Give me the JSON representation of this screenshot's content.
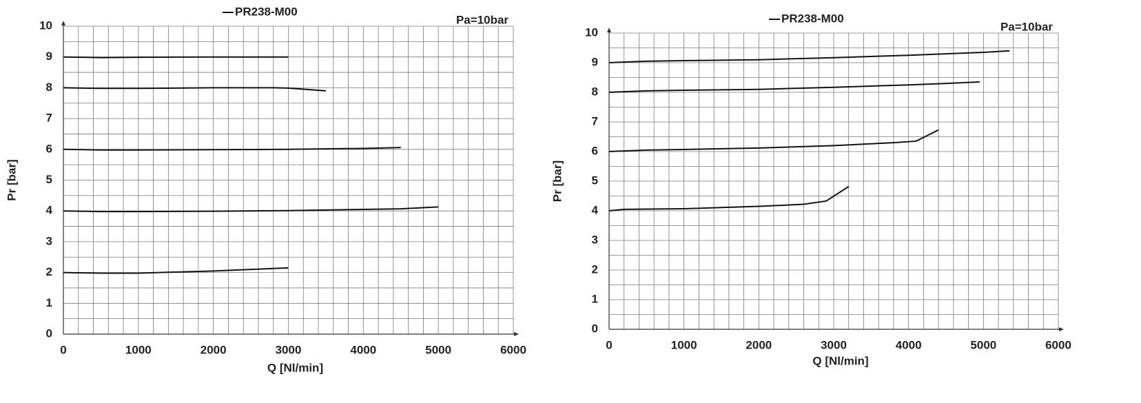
{
  "chart_data": [
    {
      "type": "line",
      "title": "PR238-M00",
      "annotation": "Pa=10bar",
      "x_label": "Q [Nl/min]",
      "y_label": "Pr [bar]",
      "xlim": [
        0,
        6000
      ],
      "xticks": [
        0,
        1000,
        2000,
        3000,
        4000,
        5000,
        6000
      ],
      "ylim": [
        0,
        10
      ],
      "yticks": [
        0,
        1,
        2,
        3,
        4,
        5,
        6,
        7,
        8,
        9,
        10
      ],
      "grid": true,
      "color": "#111111",
      "series": [
        {
          "x": [
            0,
            500,
            1000,
            2000,
            3000
          ],
          "values": [
            9,
            8.98,
            8.99,
            9,
            9
          ]
        },
        {
          "x": [
            0,
            500,
            1000,
            2000,
            2800,
            3000,
            3500
          ],
          "values": [
            8,
            7.98,
            7.98,
            8,
            8,
            7.99,
            7.9
          ]
        },
        {
          "x": [
            0,
            500,
            1000,
            2000,
            3000,
            4000,
            4500
          ],
          "values": [
            6,
            5.98,
            5.98,
            5.99,
            6,
            6.03,
            6.06
          ]
        },
        {
          "x": [
            0,
            500,
            1000,
            2000,
            3000,
            4000,
            4500,
            5000
          ],
          "values": [
            4,
            3.98,
            3.98,
            3.99,
            4.01,
            4.05,
            4.07,
            4.13
          ]
        },
        {
          "x": [
            0,
            500,
            1000,
            2000,
            3000
          ],
          "values": [
            2,
            1.98,
            1.98,
            2.05,
            2.15
          ]
        }
      ]
    },
    {
      "type": "line",
      "title": "PR238-M00",
      "annotation": "Pa=10bar",
      "x_label": "Q [Nl/min]",
      "y_label": "Pr [bar]",
      "xlim": [
        0,
        6000
      ],
      "xticks": [
        0,
        1000,
        2000,
        3000,
        4000,
        5000,
        6000
      ],
      "ylim": [
        0,
        10
      ],
      "yticks": [
        0,
        1,
        2,
        3,
        4,
        5,
        6,
        7,
        8,
        9,
        10
      ],
      "grid": true,
      "color": "#111111",
      "series": [
        {
          "x": [
            0,
            500,
            1000,
            2000,
            3000,
            4000,
            5000,
            5350
          ],
          "values": [
            9,
            9.05,
            9.07,
            9.1,
            9.17,
            9.25,
            9.35,
            9.4
          ]
        },
        {
          "x": [
            0,
            500,
            1000,
            2000,
            3000,
            4000,
            4500,
            4950
          ],
          "values": [
            8,
            8.05,
            8.07,
            8.1,
            8.17,
            8.25,
            8.3,
            8.35
          ]
        },
        {
          "x": [
            0,
            500,
            1000,
            2000,
            3000,
            3800,
            4100,
            4400
          ],
          "values": [
            6,
            6.05,
            6.07,
            6.12,
            6.2,
            6.3,
            6.35,
            6.73
          ]
        },
        {
          "x": [
            0,
            200,
            1000,
            2000,
            2600,
            2900,
            3200
          ],
          "values": [
            4,
            4.05,
            4.07,
            4.15,
            4.22,
            4.33,
            4.82
          ]
        }
      ]
    }
  ]
}
